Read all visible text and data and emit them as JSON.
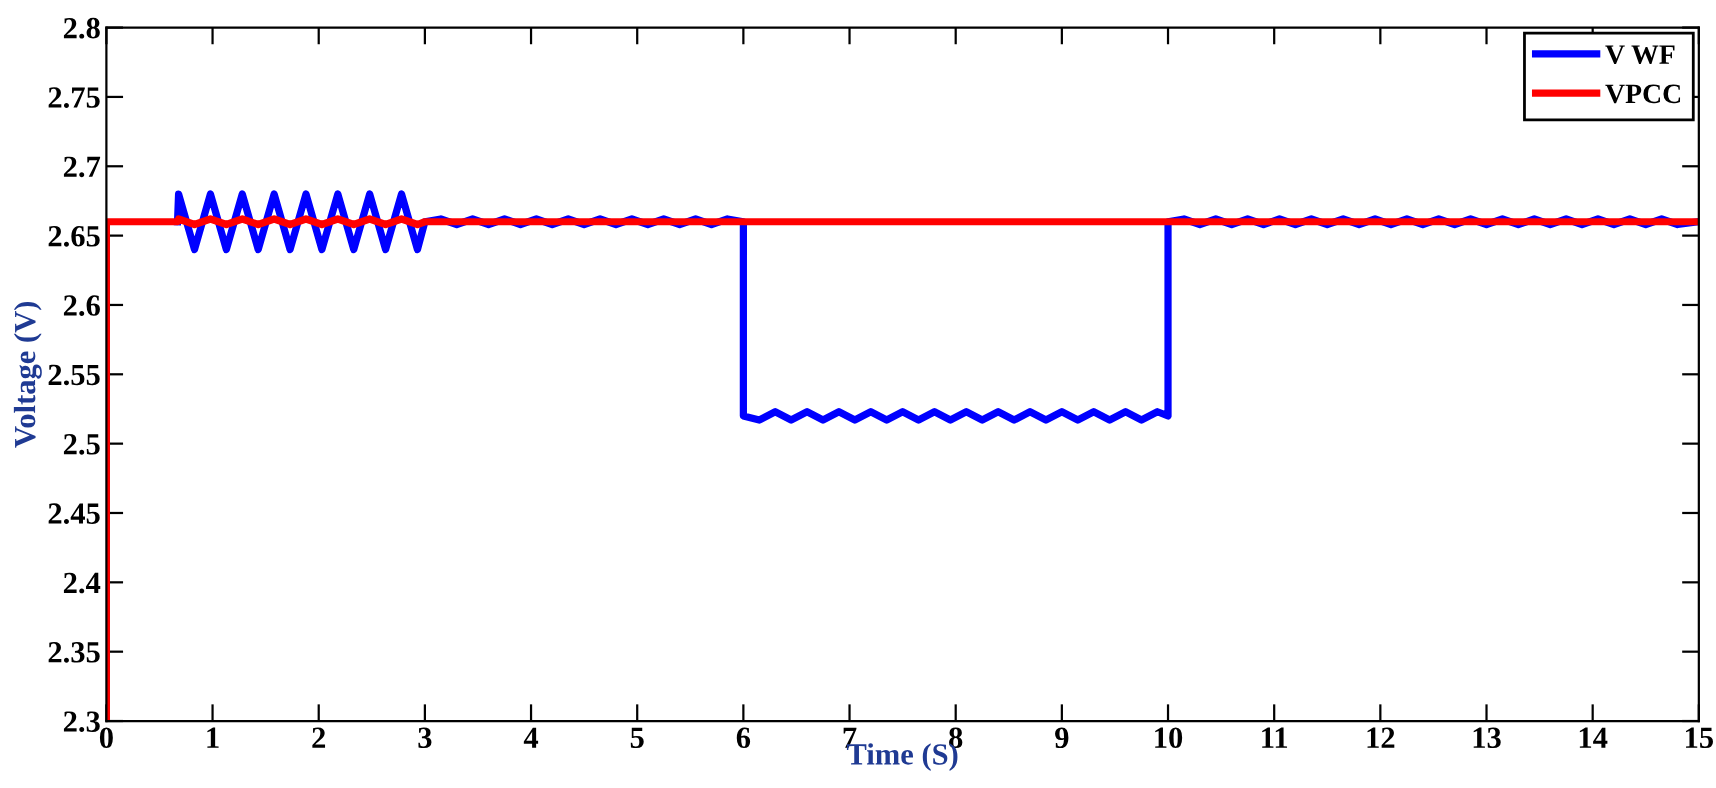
{
  "chart_data": {
    "type": "line",
    "xlabel": "Time (S)",
    "ylabel": "Voltage (V)",
    "xlim": [
      0,
      15
    ],
    "ylim": [
      2.3,
      2.8
    ],
    "xticks": [
      0,
      1,
      2,
      3,
      4,
      5,
      6,
      7,
      8,
      9,
      10,
      11,
      12,
      13,
      14,
      15
    ],
    "yticks": [
      2.3,
      2.35,
      2.4,
      2.45,
      2.5,
      2.55,
      2.6,
      2.65,
      2.7,
      2.75,
      2.8
    ],
    "grid": false,
    "legend": "top right",
    "marker": "none",
    "line_style": "solid",
    "series": [
      {
        "name": "V WF",
        "color": "#0000ff",
        "x": [
          0.67,
          0.68,
          0.83,
          0.98,
          1.13,
          1.28,
          1.43,
          1.58,
          1.73,
          1.88,
          2.03,
          2.18,
          2.33,
          2.48,
          2.63,
          2.78,
          2.93,
          3.0,
          3.15,
          3.3,
          3.45,
          3.6,
          3.75,
          3.9,
          4.05,
          4.2,
          4.35,
          4.5,
          4.65,
          4.8,
          4.95,
          5.1,
          5.25,
          5.4,
          5.55,
          5.7,
          5.85,
          6.0,
          6.0,
          6.15,
          6.3,
          6.45,
          6.6,
          6.75,
          6.9,
          7.05,
          7.2,
          7.35,
          7.5,
          7.65,
          7.8,
          7.95,
          8.1,
          8.25,
          8.4,
          8.55,
          8.7,
          8.85,
          9.0,
          9.15,
          9.3,
          9.45,
          9.6,
          9.75,
          9.9,
          10.0,
          10.0,
          10.15,
          10.3,
          10.45,
          10.6,
          10.75,
          10.9,
          11.05,
          11.2,
          11.35,
          11.5,
          11.65,
          11.8,
          11.95,
          12.1,
          12.25,
          12.4,
          12.55,
          12.7,
          12.85,
          13.0,
          13.15,
          13.3,
          13.45,
          13.6,
          13.75,
          13.9,
          14.05,
          14.2,
          14.35,
          14.5,
          14.65,
          14.8,
          15.0
        ],
        "values": [
          2.66,
          2.68,
          2.64,
          2.68,
          2.64,
          2.68,
          2.64,
          2.68,
          2.64,
          2.68,
          2.64,
          2.68,
          2.64,
          2.68,
          2.64,
          2.68,
          2.64,
          2.66,
          2.662,
          2.658,
          2.662,
          2.658,
          2.662,
          2.658,
          2.662,
          2.658,
          2.662,
          2.658,
          2.662,
          2.658,
          2.662,
          2.658,
          2.662,
          2.658,
          2.662,
          2.658,
          2.662,
          2.66,
          2.52,
          2.517,
          2.523,
          2.517,
          2.523,
          2.517,
          2.523,
          2.517,
          2.523,
          2.517,
          2.523,
          2.517,
          2.523,
          2.517,
          2.523,
          2.517,
          2.523,
          2.517,
          2.523,
          2.517,
          2.523,
          2.517,
          2.523,
          2.517,
          2.523,
          2.517,
          2.523,
          2.52,
          2.66,
          2.662,
          2.658,
          2.662,
          2.658,
          2.662,
          2.658,
          2.662,
          2.658,
          2.662,
          2.658,
          2.662,
          2.658,
          2.662,
          2.658,
          2.662,
          2.658,
          2.662,
          2.658,
          2.662,
          2.658,
          2.662,
          2.658,
          2.662,
          2.658,
          2.662,
          2.658,
          2.662,
          2.658,
          2.662,
          2.658,
          2.662,
          2.658,
          2.66
        ]
      },
      {
        "name": "VPCC",
        "color": "#ff0000",
        "x": [
          0,
          0,
          0.67,
          0.68,
          0.83,
          0.98,
          1.13,
          1.28,
          1.43,
          1.58,
          1.73,
          1.88,
          2.03,
          2.18,
          2.33,
          2.48,
          2.63,
          2.78,
          2.93,
          3.0,
          15.0
        ],
        "values": [
          2.3,
          2.66,
          2.66,
          2.662,
          2.658,
          2.662,
          2.658,
          2.662,
          2.658,
          2.662,
          2.658,
          2.662,
          2.658,
          2.662,
          2.658,
          2.662,
          2.658,
          2.662,
          2.658,
          2.66,
          2.66
        ]
      }
    ]
  }
}
